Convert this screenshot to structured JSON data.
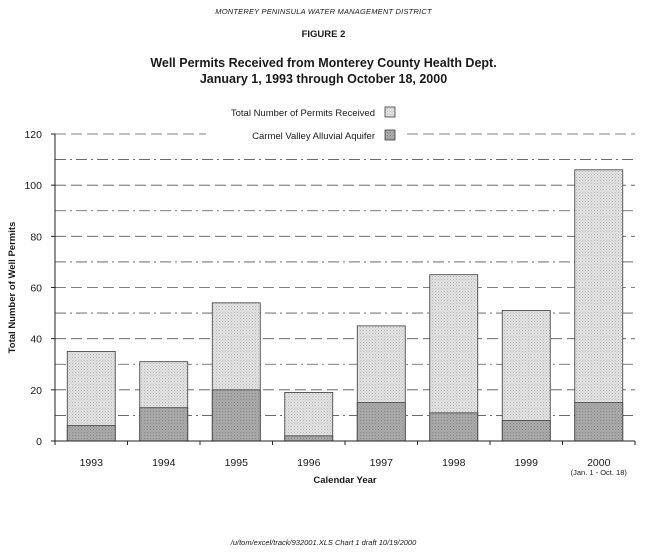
{
  "header": {
    "organization": "MONTEREY PENINSULA WATER MANAGEMENT DISTRICT",
    "figure_label": "FIGURE 2",
    "title_line1": "Well Permits Received from Monterey County Health Dept.",
    "title_line2": "January 1, 1993 through October 18, 2000"
  },
  "footer": {
    "path": "/u/tom/excel/track/932001.XLS Chart 1  draft 10/19/2000"
  },
  "colors": {
    "total": "#dcdcdc",
    "carmel": "#a9a9a9",
    "outline": "#3a3a3a"
  },
  "chart_data": {
    "type": "bar",
    "stacked": false,
    "overlapping": true,
    "title": "Well Permits Received from Monterey County Health Dept.",
    "subtitle": "January 1, 1993 through October 18, 2000",
    "xlabel": "Calendar Year",
    "ylabel": "Total Number of Well Permits",
    "ylim": [
      0,
      120
    ],
    "yticks": [
      0,
      20,
      40,
      60,
      80,
      100,
      120
    ],
    "grid": true,
    "legend_position": "top-center",
    "categories": [
      "1993",
      "1994",
      "1995",
      "1996",
      "1997",
      "1998",
      "1999",
      "2000"
    ],
    "category_notes": [
      "",
      "",
      "",
      "",
      "",
      "",
      "",
      "(Jan. 1 - Oct. 18)"
    ],
    "series": [
      {
        "name": "Total Number of Permits Received",
        "values": [
          35,
          31,
          54,
          19,
          45,
          65,
          51,
          106
        ]
      },
      {
        "name": "Carmel Valley Alluvial Aquifer",
        "values": [
          6,
          13,
          20,
          2,
          15,
          11,
          8,
          15
        ]
      }
    ]
  }
}
